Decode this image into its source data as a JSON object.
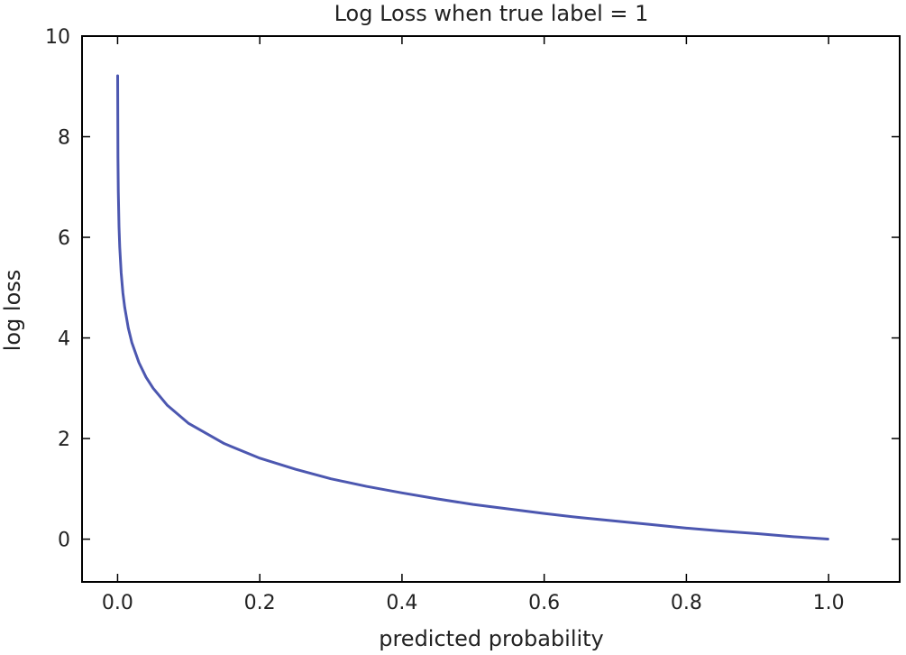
{
  "chart_data": {
    "type": "line",
    "title": "Log Loss when true label = 1",
    "xlabel": "predicted probability",
    "ylabel": "log loss",
    "xlim": [
      -0.05,
      1.1
    ],
    "ylim": [
      -0.85,
      10
    ],
    "grid": false,
    "legend": "none",
    "x_ticks": [
      "0.0",
      "0.2",
      "0.4",
      "0.6",
      "0.8",
      "1.0"
    ],
    "y_ticks": [
      "0",
      "2",
      "4",
      "6",
      "8",
      "10"
    ],
    "series": [
      {
        "color": "#4c57b0",
        "points": [
          [
            0.0001,
            9.21
          ],
          [
            0.0005,
            7.6
          ],
          [
            0.001,
            6.91
          ],
          [
            0.002,
            6.21
          ],
          [
            0.003,
            5.81
          ],
          [
            0.005,
            5.3
          ],
          [
            0.0075,
            4.89
          ],
          [
            0.01,
            4.61
          ],
          [
            0.015,
            4.2
          ],
          [
            0.02,
            3.91
          ],
          [
            0.03,
            3.51
          ],
          [
            0.04,
            3.22
          ],
          [
            0.05,
            3.0
          ],
          [
            0.07,
            2.66
          ],
          [
            0.1,
            2.3
          ],
          [
            0.15,
            1.9
          ],
          [
            0.2,
            1.61
          ],
          [
            0.25,
            1.39
          ],
          [
            0.3,
            1.2
          ],
          [
            0.35,
            1.05
          ],
          [
            0.4,
            0.92
          ],
          [
            0.45,
            0.8
          ],
          [
            0.5,
            0.69
          ],
          [
            0.55,
            0.6
          ],
          [
            0.6,
            0.51
          ],
          [
            0.65,
            0.43
          ],
          [
            0.7,
            0.36
          ],
          [
            0.75,
            0.29
          ],
          [
            0.8,
            0.22
          ],
          [
            0.85,
            0.16
          ],
          [
            0.9,
            0.11
          ],
          [
            0.95,
            0.05
          ],
          [
            0.999,
            0.001
          ]
        ]
      }
    ]
  }
}
